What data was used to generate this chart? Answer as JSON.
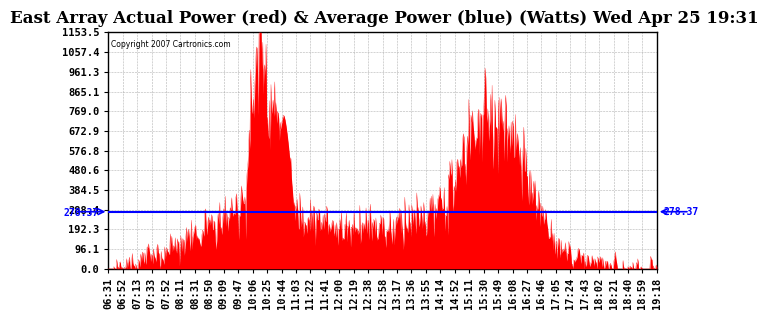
{
  "title": "East Array Actual Power (red) & Average Power (blue) (Watts) Wed Apr 25 19:31",
  "copyright": "Copyright 2007 Cartronics.com",
  "avg_power": 278.37,
  "ymax": 1153.5,
  "yticks": [
    0.0,
    96.1,
    192.3,
    288.4,
    384.5,
    480.6,
    576.8,
    672.9,
    769.0,
    865.1,
    961.3,
    1057.4,
    1153.5
  ],
  "ytick_labels": [
    "0.0",
    "96.1",
    "192.3",
    "288.4",
    "384.5",
    "480.6",
    "576.8",
    "672.9",
    "769.0",
    "865.1",
    "961.3",
    "1057.4",
    "1153.5"
  ],
  "fill_color": "#FF0000",
  "line_color": "#0000FF",
  "background_color": "#FFFFFF",
  "plot_bg_color": "#FFFFFF",
  "grid_color": "#808080",
  "title_fontsize": 12,
  "tick_fontsize": 7.5,
  "xtick_labels": [
    "06:31",
    "06:52",
    "07:13",
    "07:33",
    "07:52",
    "08:11",
    "08:31",
    "08:50",
    "09:09",
    "09:47",
    "10:06",
    "10:25",
    "10:44",
    "11:03",
    "11:22",
    "11:41",
    "12:00",
    "12:19",
    "12:38",
    "12:58",
    "13:17",
    "13:36",
    "13:55",
    "14:14",
    "14:52",
    "15:11",
    "15:30",
    "15:49",
    "16:08",
    "16:27",
    "16:46",
    "17:05",
    "17:24",
    "17:43",
    "18:02",
    "18:21",
    "18:40",
    "18:59",
    "19:18"
  ],
  "profile_points_t": [
    0.0,
    0.04,
    0.07,
    0.1,
    0.13,
    0.16,
    0.19,
    0.22,
    0.25,
    0.265,
    0.28,
    0.295,
    0.31,
    0.325,
    0.34,
    0.36,
    0.38,
    0.4,
    0.42,
    0.44,
    0.46,
    0.48,
    0.5,
    0.52,
    0.54,
    0.56,
    0.58,
    0.6,
    0.62,
    0.64,
    0.66,
    0.68,
    0.7,
    0.72,
    0.74,
    0.76,
    0.78,
    0.8,
    0.82,
    0.85,
    0.88,
    0.91,
    0.94,
    0.97,
    1.0
  ],
  "profile_points_v": [
    0,
    20,
    50,
    80,
    120,
    160,
    210,
    270,
    350,
    900,
    1150,
    800,
    730,
    400,
    280,
    260,
    230,
    210,
    190,
    200,
    220,
    210,
    200,
    210,
    230,
    240,
    260,
    280,
    350,
    480,
    650,
    720,
    700,
    680,
    580,
    450,
    320,
    200,
    100,
    50,
    20,
    5,
    2,
    1,
    0
  ]
}
